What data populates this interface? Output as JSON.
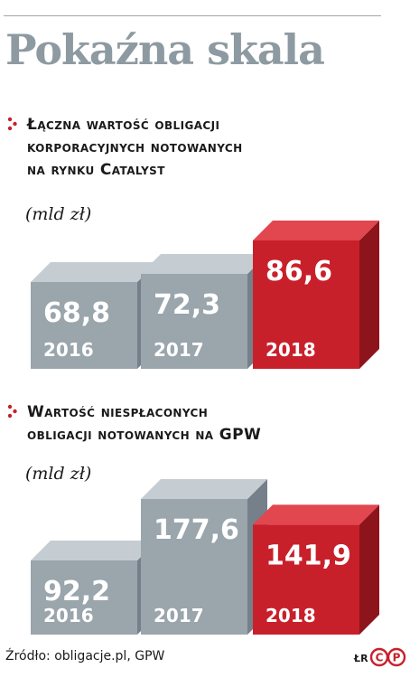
{
  "title": "Pokaźna skala",
  "colors": {
    "bar_gray": "#9aa5ac",
    "bar_highlight": "#c8202b",
    "title": "#8e9aa1"
  },
  "chart_data": [
    {
      "type": "bar",
      "title_lines": [
        "Łączna wartość obligacji",
        "korporacyjnych notowanych",
        "na rynku Catalyst"
      ],
      "unit": "(mld zł)",
      "categories": [
        "2016",
        "2017",
        "2018"
      ],
      "values": [
        68.8,
        72.3,
        86.6
      ],
      "value_labels": [
        "68,8",
        "72,3",
        "86,6"
      ],
      "highlight": "2018",
      "grid": false
    },
    {
      "type": "bar",
      "title_lines": [
        "Wartość niespłaconych",
        "obligacji notowanych na GPW"
      ],
      "unit": "(mld zł)",
      "categories": [
        "2016",
        "2017",
        "2018"
      ],
      "values": [
        92.2,
        177.6,
        141.9
      ],
      "value_labels": [
        "92,2",
        "177,6",
        "141,9"
      ],
      "highlight": "2018",
      "grid": false
    }
  ],
  "footer": {
    "source": "Źródło: obligacje.pl, GPW",
    "initials": "ŁR",
    "logo_letters": [
      "C",
      "P"
    ],
    "logo_icon": "cp-logo-icon"
  }
}
